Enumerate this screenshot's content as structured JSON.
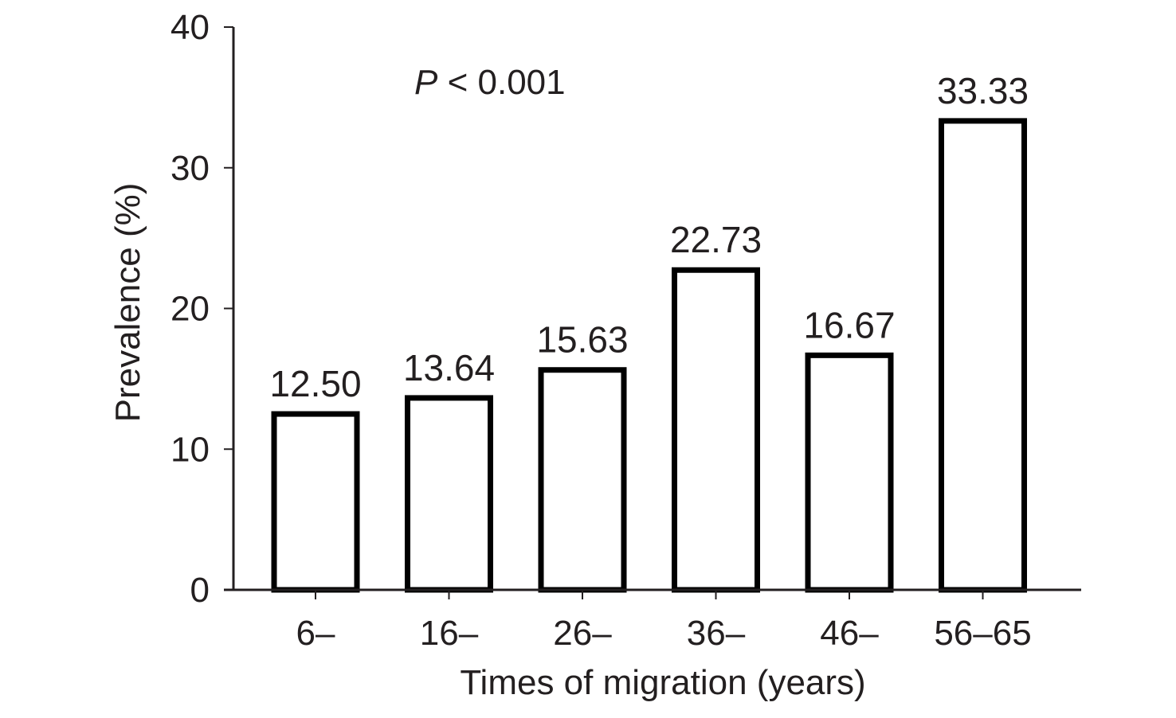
{
  "chart_data": {
    "type": "bar",
    "categories": [
      "6–",
      "16–",
      "26–",
      "36–",
      "46–",
      "56–65"
    ],
    "values": [
      12.5,
      13.64,
      15.63,
      22.73,
      16.67,
      33.33
    ],
    "data_labels": [
      "12.50",
      "13.64",
      "15.63",
      "22.73",
      "16.67",
      "33.33"
    ],
    "title": "",
    "xlabel": "Times of migration (years)",
    "ylabel": "Prevalence (%)",
    "ylim": [
      0,
      40
    ],
    "yticks": [
      0,
      10,
      20,
      30,
      40
    ],
    "ytick_labels": [
      "0",
      "10",
      "20",
      "30",
      "40"
    ],
    "grid": false,
    "legend": "none",
    "annotation": {
      "symbol": "P",
      "text": " < 0.001"
    },
    "bar_fill": "#ffffff",
    "bar_stroke": "#000000",
    "axis_color": "#231f20"
  }
}
